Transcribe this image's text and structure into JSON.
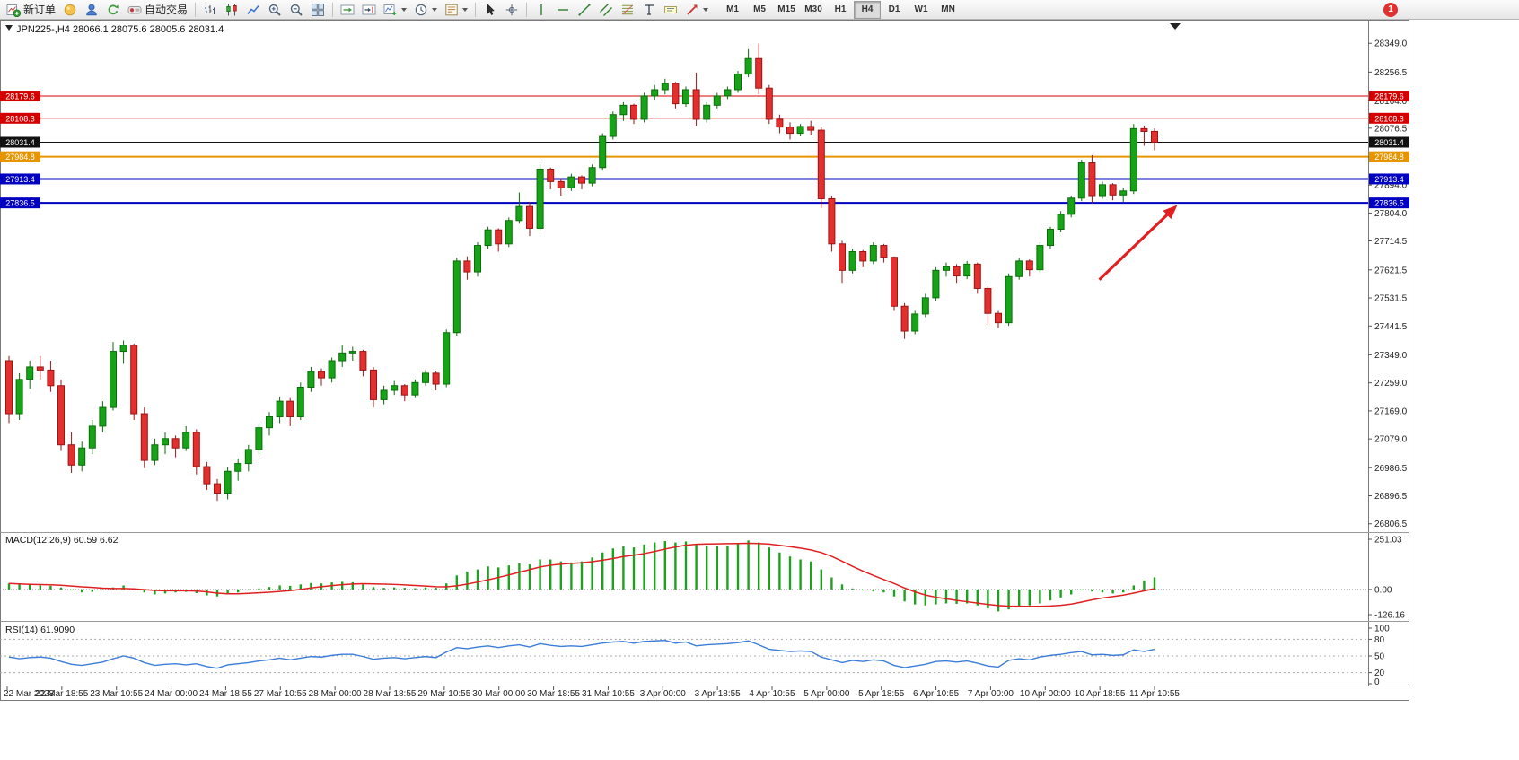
{
  "toolbar": {
    "groups": [
      {
        "items": [
          {
            "icon": "new-order-icon",
            "label": "新订单",
            "name": "new-order-button"
          },
          {
            "icon": "market-icon",
            "name": "market-button"
          },
          {
            "icon": "community-icon",
            "name": "community-button"
          },
          {
            "icon": "refresh-icon",
            "name": "refresh-button"
          },
          {
            "icon": "autotrading-icon",
            "label": "自动交易",
            "name": "autotrading-button"
          }
        ]
      },
      {
        "items": [
          {
            "icon": "bar-chart-icon",
            "name": "bar-chart-button"
          },
          {
            "icon": "candlestick-icon",
            "name": "candlestick-button"
          },
          {
            "icon": "line-chart-icon",
            "name": "line-chart-button"
          },
          {
            "icon": "zoom-in-icon",
            "name": "zoom-in-button"
          },
          {
            "icon": "zoom-out-icon",
            "name": "zoom-out-button"
          },
          {
            "icon": "tile-windows-icon",
            "name": "tile-windows-button"
          }
        ]
      },
      {
        "items": [
          {
            "icon": "autoscroll-icon",
            "name": "autoscroll-button"
          },
          {
            "icon": "chart-shift-icon",
            "name": "chart-shift-button"
          },
          {
            "icon": "new-chart-icon",
            "name": "new-chart-button",
            "dropdown": true
          },
          {
            "icon": "period-icon",
            "name": "periods-button",
            "dropdown": true
          },
          {
            "icon": "template-icon",
            "name": "templates-button",
            "dropdown": true
          }
        ]
      },
      {
        "items": [
          {
            "icon": "cursor-icon",
            "name": "cursor-button"
          },
          {
            "icon": "crosshair-icon",
            "name": "crosshair-button"
          }
        ]
      },
      {
        "items": [
          {
            "icon": "vline-icon",
            "name": "vertical-line-button"
          },
          {
            "icon": "hline-icon",
            "name": "horizontal-line-button"
          },
          {
            "icon": "trendline-icon",
            "name": "trendline-button"
          },
          {
            "icon": "channel-icon",
            "name": "channel-button"
          },
          {
            "icon": "fibo-icon",
            "name": "fibonacci-button"
          },
          {
            "icon": "text-icon",
            "name": "text-button"
          },
          {
            "icon": "label-icon",
            "name": "label-button"
          },
          {
            "icon": "arrows-icon",
            "name": "arrows-button",
            "dropdown": true
          }
        ]
      }
    ],
    "timeframes": [
      "M1",
      "M5",
      "M15",
      "M30",
      "H1",
      "H4",
      "D1",
      "W1",
      "MN"
    ],
    "active_timeframe": "H4",
    "notification_badge": "1"
  },
  "chart": {
    "symbol": "JPN225-",
    "period": "H4",
    "title_display": "JPN225-,H4  28066.1 28075.6 28005.6 28031.4"
  },
  "chart_data": {
    "type": "candlestick",
    "symbol": "JPN225-",
    "timeframe": "H4",
    "last_ohlc": {
      "open": 28066.1,
      "high": 28075.6,
      "low": 28005.6,
      "close": 28031.4
    },
    "price_axis_ticks": [
      28349.0,
      28256.5,
      28164.0,
      28076.5,
      27984.0,
      27894.0,
      27804.0,
      27714.5,
      27621.5,
      27531.5,
      27441.5,
      27349.0,
      27259.0,
      27169.0,
      27079.0,
      26986.5,
      26896.5,
      26806.5
    ],
    "hlines": [
      {
        "price": 28179.6,
        "label": "28179.6",
        "color": "#d40000",
        "width": 1
      },
      {
        "price": 28108.3,
        "label": "28108.3",
        "color": "#d40000",
        "width": 1
      },
      {
        "price": 28031.4,
        "label": "28031.4",
        "color": "#111111",
        "width": 1,
        "role": "current-price"
      },
      {
        "price": 27984.8,
        "label": "27984.8",
        "color": "#e69500",
        "width": 2
      },
      {
        "price": 27913.4,
        "label": "27913.4",
        "color": "#0000c0",
        "width": 2
      },
      {
        "price": 27836.5,
        "label": "27836.5",
        "color": "#0000c0",
        "width": 2
      }
    ],
    "candles": [
      [
        27330,
        27345,
        27130,
        27160
      ],
      [
        27160,
        27290,
        27140,
        27270
      ],
      [
        27270,
        27330,
        27240,
        27310
      ],
      [
        27310,
        27345,
        27270,
        27300
      ],
      [
        27300,
        27330,
        27230,
        27250
      ],
      [
        27250,
        27270,
        27040,
        27060
      ],
      [
        27060,
        27100,
        26970,
        26995
      ],
      [
        26995,
        27070,
        26975,
        27050
      ],
      [
        27050,
        27140,
        27030,
        27120
      ],
      [
        27120,
        27200,
        27100,
        27180
      ],
      [
        27180,
        27390,
        27170,
        27360
      ],
      [
        27360,
        27395,
        27320,
        27380
      ],
      [
        27380,
        27385,
        27140,
        27160
      ],
      [
        27160,
        27180,
        26985,
        27010
      ],
      [
        27010,
        27080,
        26995,
        27060
      ],
      [
        27060,
        27100,
        27030,
        27080
      ],
      [
        27080,
        27090,
        27020,
        27050
      ],
      [
        27050,
        27120,
        27040,
        27100
      ],
      [
        27100,
        27110,
        26965,
        26990
      ],
      [
        26990,
        27005,
        26915,
        26935
      ],
      [
        26935,
        26950,
        26880,
        26905
      ],
      [
        26905,
        26990,
        26885,
        26975
      ],
      [
        26975,
        27015,
        26945,
        27000
      ],
      [
        27000,
        27060,
        26975,
        27045
      ],
      [
        27045,
        27130,
        27030,
        27115
      ],
      [
        27115,
        27165,
        27090,
        27150
      ],
      [
        27150,
        27215,
        27130,
        27200
      ],
      [
        27200,
        27210,
        27120,
        27150
      ],
      [
        27150,
        27260,
        27140,
        27245
      ],
      [
        27245,
        27310,
        27230,
        27295
      ],
      [
        27295,
        27305,
        27250,
        27275
      ],
      [
        27275,
        27340,
        27260,
        27330
      ],
      [
        27330,
        27380,
        27310,
        27355
      ],
      [
        27355,
        27375,
        27330,
        27360
      ],
      [
        27360,
        27365,
        27280,
        27300
      ],
      [
        27300,
        27310,
        27180,
        27205
      ],
      [
        27205,
        27250,
        27190,
        27235
      ],
      [
        27235,
        27265,
        27220,
        27250
      ],
      [
        27250,
        27255,
        27200,
        27220
      ],
      [
        27220,
        27270,
        27210,
        27260
      ],
      [
        27260,
        27300,
        27250,
        27290
      ],
      [
        27290,
        27295,
        27235,
        27255
      ],
      [
        27255,
        27430,
        27245,
        27420
      ],
      [
        27420,
        27660,
        27410,
        27650
      ],
      [
        27650,
        27665,
        27590,
        27615
      ],
      [
        27615,
        27710,
        27600,
        27700
      ],
      [
        27700,
        27760,
        27690,
        27750
      ],
      [
        27750,
        27755,
        27680,
        27705
      ],
      [
        27705,
        27790,
        27695,
        27780
      ],
      [
        27780,
        27870,
        27770,
        27825
      ],
      [
        27825,
        27840,
        27730,
        27755
      ],
      [
        27755,
        27960,
        27745,
        27945
      ],
      [
        27945,
        27950,
        27880,
        27905
      ],
      [
        27905,
        27915,
        27860,
        27885
      ],
      [
        27885,
        27930,
        27875,
        27920
      ],
      [
        27920,
        27925,
        27880,
        27900
      ],
      [
        27900,
        27960,
        27890,
        27950
      ],
      [
        27950,
        28060,
        27940,
        28050
      ],
      [
        28050,
        28130,
        28040,
        28120
      ],
      [
        28120,
        28160,
        28100,
        28150
      ],
      [
        28150,
        28155,
        28090,
        28105
      ],
      [
        28105,
        28190,
        28095,
        28180
      ],
      [
        28180,
        28215,
        28165,
        28200
      ],
      [
        28200,
        28235,
        28185,
        28220
      ],
      [
        28220,
        28225,
        28140,
        28155
      ],
      [
        28155,
        28210,
        28145,
        28200
      ],
      [
        28200,
        28255,
        28085,
        28105
      ],
      [
        28105,
        28160,
        28095,
        28150
      ],
      [
        28150,
        28190,
        28140,
        28180
      ],
      [
        28180,
        28210,
        28170,
        28200
      ],
      [
        28200,
        28260,
        28190,
        28250
      ],
      [
        28250,
        28330,
        28240,
        28300
      ],
      [
        28300,
        28349,
        28185,
        28205
      ],
      [
        28205,
        28215,
        28090,
        28105
      ],
      [
        28105,
        28120,
        28060,
        28080
      ],
      [
        28080,
        28095,
        28040,
        28060
      ],
      [
        28060,
        28090,
        28050,
        28082
      ],
      [
        28082,
        28100,
        28055,
        28070
      ],
      [
        28070,
        28080,
        27820,
        27850
      ],
      [
        27850,
        27860,
        27680,
        27705
      ],
      [
        27705,
        27715,
        27580,
        27620
      ],
      [
        27620,
        27690,
        27610,
        27680
      ],
      [
        27680,
        27685,
        27630,
        27650
      ],
      [
        27650,
        27710,
        27640,
        27700
      ],
      [
        27700,
        27705,
        27645,
        27662
      ],
      [
        27662,
        27665,
        27490,
        27505
      ],
      [
        27505,
        27515,
        27400,
        27425
      ],
      [
        27425,
        27490,
        27415,
        27480
      ],
      [
        27480,
        27545,
        27470,
        27532
      ],
      [
        27532,
        27630,
        27520,
        27620
      ],
      [
        27620,
        27645,
        27600,
        27632
      ],
      [
        27632,
        27640,
        27580,
        27602
      ],
      [
        27602,
        27650,
        27592,
        27640
      ],
      [
        27640,
        27645,
        27545,
        27562
      ],
      [
        27562,
        27570,
        27445,
        27482
      ],
      [
        27482,
        27490,
        27435,
        27452
      ],
      [
        27452,
        27610,
        27442,
        27600
      ],
      [
        27600,
        27660,
        27590,
        27650
      ],
      [
        27650,
        27655,
        27600,
        27622
      ],
      [
        27622,
        27710,
        27612,
        27700
      ],
      [
        27700,
        27760,
        27690,
        27752
      ],
      [
        27752,
        27810,
        27742,
        27800
      ],
      [
        27800,
        27860,
        27790,
        27852
      ],
      [
        27852,
        27975,
        27842,
        27965
      ],
      [
        27965,
        27990,
        27835,
        27860
      ],
      [
        27860,
        27905,
        27850,
        27895
      ],
      [
        27895,
        27900,
        27845,
        27862
      ],
      [
        27862,
        27885,
        27840,
        27875
      ],
      [
        27875,
        28090,
        27865,
        28075
      ],
      [
        28075,
        28085,
        28020,
        28066
      ],
      [
        28066.1,
        28075.6,
        28005.6,
        28031.4
      ]
    ],
    "time_labels": [
      "22 Mar 2023",
      "22 Mar 18:55",
      "23 Mar 10:55",
      "24 Mar 00:00",
      "24 Mar 18:55",
      "27 Mar 10:55",
      "28 Mar 00:00",
      "28 Mar 18:55",
      "29 Mar 10:55",
      "30 Mar 00:00",
      "30 Mar 18:55",
      "31 Mar 10:55",
      "3 Apr 00:00",
      "3 Apr 18:55",
      "4 Apr 10:55",
      "5 Apr 00:00",
      "5 Apr 18:55",
      "6 Apr 10:55",
      "7 Apr 00:00",
      "10 Apr 00:00",
      "10 Apr 18:55",
      "11 Apr 10:55"
    ],
    "macd": {
      "display": "MACD(12,26,9) 60.59 6.62",
      "name": "MACD(12,26,9)",
      "main_value": 60.59,
      "signal_value": 6.62,
      "axis_labels": [
        251.03,
        0.0,
        -126.16
      ],
      "histogram": [
        30,
        25,
        22,
        20,
        18,
        10,
        -5,
        -15,
        -12,
        -5,
        10,
        20,
        5,
        -15,
        -25,
        -20,
        -15,
        -12,
        -18,
        -30,
        -35,
        -25,
        -15,
        -5,
        5,
        12,
        20,
        18,
        25,
        32,
        30,
        35,
        38,
        36,
        25,
        12,
        8,
        10,
        8,
        6,
        10,
        8,
        30,
        70,
        90,
        100,
        115,
        110,
        120,
        130,
        125,
        150,
        150,
        140,
        135,
        140,
        160,
        185,
        205,
        215,
        210,
        225,
        235,
        242,
        235,
        240,
        225,
        220,
        218,
        220,
        230,
        245,
        235,
        210,
        185,
        165,
        150,
        140,
        100,
        60,
        25,
        5,
        -5,
        -10,
        -15,
        -35,
        -60,
        -75,
        -80,
        -75,
        -70,
        -72,
        -70,
        -80,
        -95,
        -110,
        -100,
        -85,
        -80,
        -70,
        -55,
        -40,
        -25,
        -5,
        -10,
        -15,
        -20,
        -15,
        20,
        45,
        60.59
      ]
    },
    "rsi": {
      "display": "RSI(14) 61.9090",
      "name": "RSI(14)",
      "value": 61.909,
      "axis_labels": [
        100,
        80,
        50,
        20,
        0
      ],
      "dashed_levels": [
        80,
        50,
        20
      ],
      "values": [
        48,
        45,
        47,
        48,
        46,
        40,
        35,
        33,
        36,
        39,
        45,
        50,
        46,
        38,
        33,
        35,
        36,
        34,
        36,
        31,
        28,
        34,
        36,
        38,
        41,
        43,
        46,
        43,
        46,
        49,
        48,
        51,
        53,
        53,
        49,
        44,
        46,
        47,
        45,
        47,
        49,
        47,
        57,
        65,
        63,
        66,
        68,
        65,
        68,
        70,
        66,
        72,
        69,
        67,
        68,
        67,
        70,
        73,
        75,
        76,
        73,
        76,
        77,
        78,
        73,
        75,
        68,
        70,
        71,
        72,
        74,
        77,
        70,
        62,
        60,
        58,
        59,
        58,
        48,
        43,
        38,
        42,
        40,
        43,
        41,
        33,
        29,
        32,
        35,
        40,
        41,
        39,
        41,
        37,
        32,
        30,
        42,
        45,
        43,
        48,
        51,
        53,
        56,
        58,
        52,
        53,
        51,
        52,
        61,
        58,
        61.91
      ]
    },
    "arrow_annotation": {
      "from_index": 104.7,
      "from_price": 27590,
      "to_index": 112.2,
      "to_price": 27830,
      "color": "#e02020"
    }
  }
}
